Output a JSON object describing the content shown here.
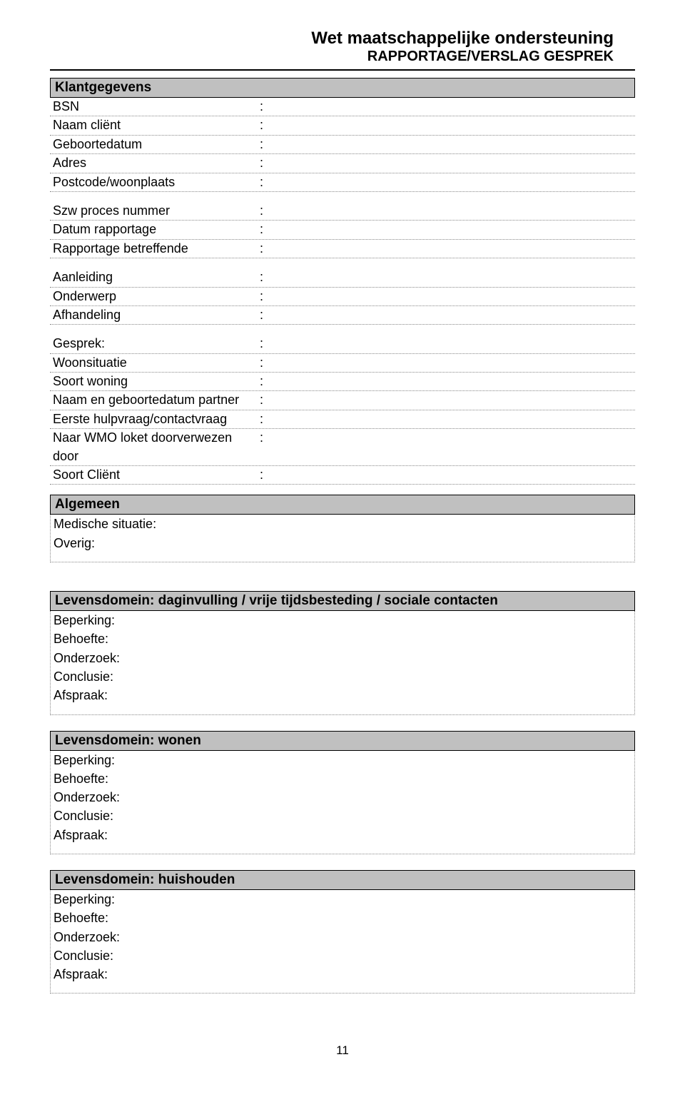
{
  "title": {
    "main": "Wet maatschappelijke ondersteuning",
    "sub": "RAPPORTAGE/VERSLAG GESPREK"
  },
  "colors": {
    "header_bg": "#c0c0c0",
    "border": "#000000",
    "dotted": "#888888",
    "text": "#000000",
    "background": "#ffffff"
  },
  "klantgegevens": {
    "header": "Klantgegevens",
    "fields": [
      {
        "label": "BSN",
        "value": ""
      },
      {
        "label": "Naam cliënt",
        "value": ""
      },
      {
        "label": "Geboortedatum",
        "value": ""
      },
      {
        "label": "Adres",
        "value": ""
      },
      {
        "label": "Postcode/woonplaats",
        "value": ""
      }
    ],
    "fields2": [
      {
        "label": "Szw proces nummer",
        "value": ""
      },
      {
        "label": "Datum rapportage",
        "value": ""
      },
      {
        "label": "Rapportage betreffende",
        "value": ""
      }
    ],
    "fields3": [
      {
        "label": "Aanleiding",
        "value": ""
      },
      {
        "label": "Onderwerp",
        "value": ""
      },
      {
        "label": "Afhandeling",
        "value": ""
      }
    ],
    "fields4": [
      {
        "label": "Gesprek:",
        "value": ""
      },
      {
        "label": "Woonsituatie",
        "value": ""
      },
      {
        "label": "Soort woning",
        "value": ""
      },
      {
        "label": "Naam en geboortedatum partner",
        "value": ""
      },
      {
        "label": "Eerste hulpvraag/contactvraag",
        "value": ""
      },
      {
        "label": "Naar WMO loket doorverwezen door",
        "value": ""
      },
      {
        "label": "Soort Cliënt",
        "value": ""
      }
    ]
  },
  "algemeen": {
    "header": "Algemeen",
    "rows": [
      "Medische situatie:",
      "Overig:"
    ]
  },
  "domein1": {
    "header": "Levensdomein: daginvulling / vrije tijdsbesteding / sociale contacten",
    "rows": [
      "Beperking:",
      "Behoefte:",
      "Onderzoek:",
      "Conclusie:",
      "Afspraak:"
    ]
  },
  "domein2": {
    "header": "Levensdomein: wonen",
    "rows": [
      "Beperking:",
      "Behoefte:",
      "Onderzoek:",
      "Conclusie:",
      "Afspraak:"
    ]
  },
  "domein3": {
    "header": "Levensdomein: huishouden",
    "rows": [
      "Beperking:",
      "Behoefte:",
      "Onderzoek:",
      "Conclusie:",
      "Afspraak:"
    ]
  },
  "page_number": "11"
}
